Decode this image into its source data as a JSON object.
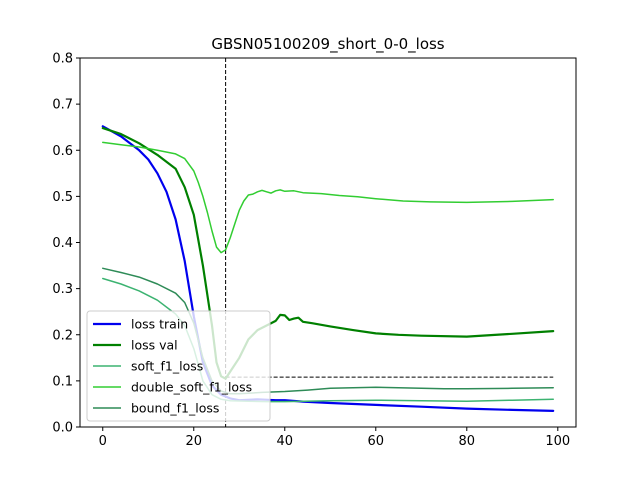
{
  "chart_data": {
    "type": "line",
    "title": "GBSN05100209_short_0-0_loss",
    "xlabel": "",
    "ylabel": "",
    "xlim": [
      -5,
      104
    ],
    "ylim": [
      0.0,
      0.8
    ],
    "xticks": [
      0,
      20,
      40,
      60,
      80,
      100
    ],
    "yticks": [
      0.0,
      0.1,
      0.2,
      0.3,
      0.4,
      0.5,
      0.6,
      0.7,
      0.8
    ],
    "grid": false,
    "legend_position": "lower-left",
    "reference_lines": [
      {
        "orientation": "vertical",
        "x": 27,
        "style": "dashed",
        "color": "#000000"
      },
      {
        "orientation": "horizontal",
        "y": 0.108,
        "x_range": [
          27,
          99
        ],
        "style": "dashed",
        "color": "#000000"
      }
    ],
    "series": [
      {
        "name": "loss train",
        "color": "#0000ee",
        "linewidth": 2.2,
        "x": [
          0,
          4,
          8,
          10,
          12,
          14,
          16,
          18,
          20,
          22,
          24,
          26,
          28,
          30,
          34,
          38,
          40,
          44,
          50,
          60,
          70,
          80,
          90,
          99
        ],
        "y": [
          0.652,
          0.63,
          0.6,
          0.58,
          0.55,
          0.51,
          0.45,
          0.36,
          0.24,
          0.14,
          0.09,
          0.07,
          0.062,
          0.058,
          0.06,
          0.058,
          0.058,
          0.055,
          0.052,
          0.048,
          0.044,
          0.04,
          0.037,
          0.035
        ]
      },
      {
        "name": "loss val",
        "color": "#008000",
        "linewidth": 2.2,
        "x": [
          0,
          4,
          8,
          12,
          16,
          18,
          20,
          22,
          24,
          25,
          26,
          27,
          28,
          30,
          32,
          34,
          36,
          38,
          39,
          40,
          41,
          42,
          43,
          44,
          46,
          50,
          55,
          60,
          65,
          70,
          80,
          90,
          99
        ],
        "y": [
          0.648,
          0.635,
          0.615,
          0.59,
          0.56,
          0.52,
          0.46,
          0.35,
          0.22,
          0.14,
          0.11,
          0.105,
          0.12,
          0.15,
          0.19,
          0.21,
          0.22,
          0.23,
          0.243,
          0.242,
          0.232,
          0.235,
          0.237,
          0.228,
          0.225,
          0.218,
          0.21,
          0.203,
          0.2,
          0.198,
          0.196,
          0.202,
          0.208
        ]
      },
      {
        "name": "soft_f1_loss",
        "color": "#3cb371",
        "linewidth": 1.5,
        "x": [
          0,
          4,
          8,
          12,
          16,
          18,
          20,
          22,
          24,
          26,
          28,
          32,
          36,
          40,
          50,
          60,
          70,
          80,
          90,
          99
        ],
        "y": [
          0.322,
          0.31,
          0.295,
          0.275,
          0.245,
          0.22,
          0.17,
          0.1,
          0.07,
          0.06,
          0.057,
          0.056,
          0.055,
          0.055,
          0.057,
          0.058,
          0.057,
          0.056,
          0.058,
          0.06
        ]
      },
      {
        "name": "double_soft_f1_loss",
        "color": "#32cd32",
        "linewidth": 1.5,
        "x": [
          0,
          4,
          8,
          12,
          16,
          18,
          20,
          21,
          22,
          23,
          24,
          25,
          26,
          27,
          28,
          29,
          30,
          31,
          32,
          33,
          34,
          35,
          36,
          37,
          38,
          39,
          40,
          42,
          44,
          48,
          52,
          56,
          60,
          66,
          72,
          80,
          90,
          99
        ],
        "y": [
          0.617,
          0.612,
          0.607,
          0.6,
          0.592,
          0.582,
          0.555,
          0.53,
          0.5,
          0.465,
          0.425,
          0.39,
          0.378,
          0.384,
          0.41,
          0.44,
          0.47,
          0.49,
          0.503,
          0.505,
          0.51,
          0.513,
          0.51,
          0.507,
          0.512,
          0.514,
          0.511,
          0.512,
          0.508,
          0.506,
          0.502,
          0.499,
          0.495,
          0.49,
          0.488,
          0.487,
          0.489,
          0.493
        ]
      },
      {
        "name": "bound_f1_loss",
        "color": "#2e8b57",
        "linewidth": 1.5,
        "x": [
          0,
          4,
          8,
          12,
          16,
          18,
          20,
          22,
          24,
          26,
          28,
          30,
          35,
          40,
          45,
          50,
          55,
          60,
          65,
          70,
          75,
          80,
          90,
          99
        ],
        "y": [
          0.344,
          0.335,
          0.325,
          0.31,
          0.29,
          0.27,
          0.225,
          0.15,
          0.1,
          0.078,
          0.072,
          0.072,
          0.075,
          0.077,
          0.08,
          0.084,
          0.085,
          0.086,
          0.085,
          0.084,
          0.083,
          0.083,
          0.084,
          0.085
        ]
      }
    ]
  }
}
